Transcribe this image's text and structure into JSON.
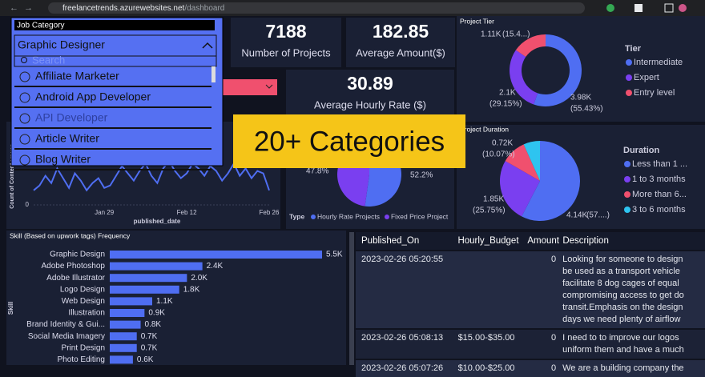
{
  "browser": {
    "host": "freelancetrends.azurewebsites.net",
    "path": "/dashboard"
  },
  "job_category": {
    "title": "Job Category",
    "selected": "Graphic Designer",
    "search_placeholder": "Search",
    "options": [
      "Affiliate Marketer",
      "Android App Developer",
      "API Developer",
      "Article Writer",
      "Blog Writer"
    ]
  },
  "kpis": [
    {
      "value": 7188,
      "label": "Number of Projects"
    },
    {
      "value": 182.85,
      "label": "Average Amount($)"
    },
    {
      "value": 30.89,
      "label": "Average Hourly Rate ($)"
    }
  ],
  "banner": "20+ Categories",
  "chart_data": [
    {
      "type": "donut",
      "title": "Project Tier",
      "legend_title": "Tier",
      "categories": [
        "Intermediate",
        "Expert",
        "Entry level"
      ],
      "colors": [
        "#4f6ef2",
        "#7a3ff0",
        "#f0506e"
      ],
      "values": [
        3980,
        2100,
        1110
      ],
      "value_labels": [
        "3.98K",
        "2.1K",
        "1.11K"
      ],
      "share_labels": [
        "(55.43%)",
        "(29.15%)",
        "(15.4...)"
      ]
    },
    {
      "type": "pie",
      "title": "Project Duration",
      "legend_title": "Duration",
      "categories": [
        "Less than 1 ...",
        "1 to 3 months",
        "More than 6...",
        "3 to 6 months"
      ],
      "colors": [
        "#4f6ef2",
        "#7a3ff0",
        "#f0506e",
        "#2ec4f0"
      ],
      "values": [
        4140,
        1850,
        720,
        480
      ],
      "value_labels": [
        "4.14K",
        "1.85K",
        "0.72K",
        null
      ],
      "share_labels": [
        "(57....)",
        "(25.75%)",
        "(10.07%)",
        null
      ]
    },
    {
      "type": "pie",
      "legend_title": "Type",
      "categories": [
        "Hourly Rate Projects",
        "Fixed Price Project"
      ],
      "colors": [
        "#4f6ef2",
        "#7a3ff0"
      ],
      "values": [
        52.2,
        47.8
      ],
      "value_labels": [
        "52.2%",
        "47.8%"
      ]
    },
    {
      "type": "line",
      "xlabel": "published_date",
      "ylabel": "Count of Content.upwor...",
      "color": "#4f6ef2",
      "ylim": [
        0,
        300
      ],
      "yticks": [
        0
      ],
      "categories": [
        null,
        null,
        null,
        null,
        null,
        null,
        null,
        null,
        null,
        null,
        null,
        null,
        "Jan 29",
        null,
        null,
        null,
        null,
        null,
        null,
        null,
        null,
        null,
        null,
        null,
        null,
        null,
        "Feb 12",
        null,
        null,
        null,
        null,
        null,
        null,
        null,
        null,
        null,
        null,
        null,
        null,
        null,
        "Feb 26"
      ],
      "values": [
        60,
        80,
        120,
        90,
        150,
        110,
        70,
        130,
        100,
        60,
        90,
        110,
        70,
        80,
        120,
        160,
        130,
        100,
        140,
        170,
        120,
        90,
        150,
        180,
        140,
        110,
        130,
        170,
        150,
        120,
        160,
        140,
        100,
        130,
        170,
        120,
        150,
        110,
        140,
        130,
        60
      ]
    },
    {
      "type": "bar",
      "orientation": "horizontal",
      "title": "Skill (Based on upwork tags) Frequency",
      "ylabel": "Skill",
      "color": "#4f6ef2",
      "categories": [
        "Graphic Design",
        "Adobe Photoshop",
        "Adobe Illustrator",
        "Logo Design",
        "Web Design",
        "Illustration",
        "Brand Identity & Gui...",
        "Social Media Imagery",
        "Print Design",
        "Photo Editing"
      ],
      "values": [
        5500,
        2400,
        2000,
        1800,
        1100,
        900,
        800,
        700,
        700,
        600
      ],
      "value_labels": [
        "5.5K",
        "2.4K",
        "2.0K",
        "1.8K",
        "1.1K",
        "0.9K",
        "0.8K",
        "0.7K",
        "0.7K",
        "0.6K"
      ]
    }
  ],
  "table": {
    "columns": [
      "Published_On",
      "Hourly_Budget",
      "Amount",
      "Description"
    ],
    "rows": [
      {
        "published_on": "2023-02-26 05:20:55",
        "hourly_budget": null,
        "amount": 0,
        "description": [
          "Looking for someone to design",
          "be used as a transport vehicle",
          "facilitate 8 dog cages of equal",
          "compromising access to get do",
          "transit.Emphasis on the design",
          "days we need plenty of airflow"
        ]
      },
      {
        "published_on": "2023-02-26 05:08:13",
        "hourly_budget": "$15.00-$35.00",
        "amount": 0,
        "description": [
          "I need to to improve our logos",
          "uniform them and have a much"
        ]
      },
      {
        "published_on": "2023-02-26 05:07:26",
        "hourly_budget": "$10.00-$25.00",
        "amount": 0,
        "description": [
          "We are a building company the"
        ]
      }
    ]
  }
}
